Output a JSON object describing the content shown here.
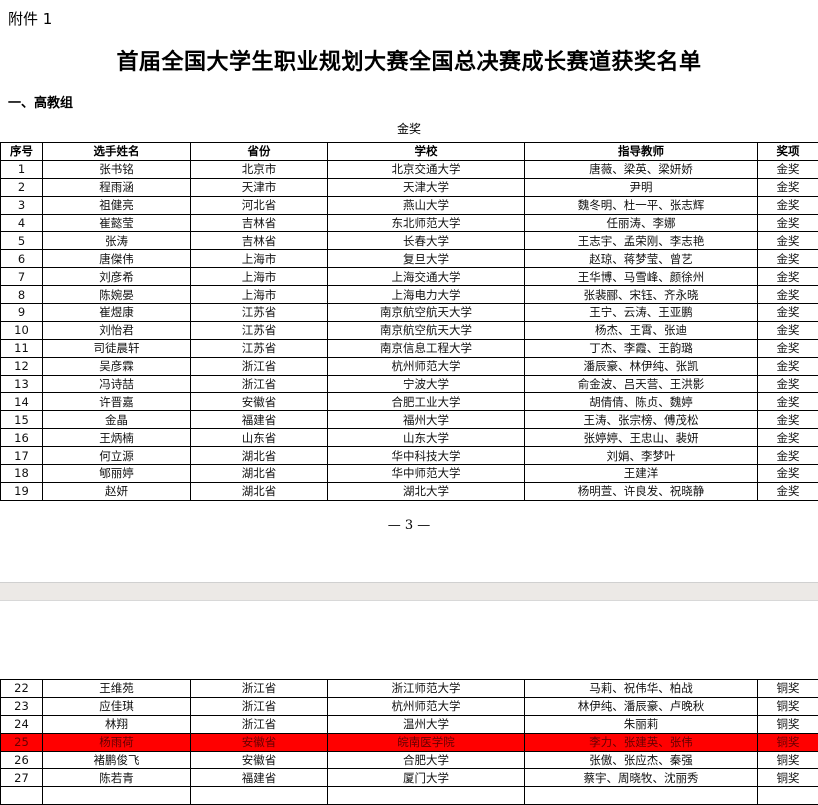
{
  "document": {
    "attachment_label": "附件 1",
    "title": "首届全国大学生职业规划大赛全国总决赛成长赛道获奖名单",
    "group_heading": "一、高教组",
    "award_heading": "金奖",
    "page_number": "— 3 —"
  },
  "table": {
    "headers": [
      "序号",
      "选手姓名",
      "省份",
      "学校",
      "指导教师",
      "奖项"
    ],
    "page1_rows": [
      [
        "1",
        "张书铭",
        "北京市",
        "北京交通大学",
        "唐薇、梁英、梁妍娇",
        "金奖"
      ],
      [
        "2",
        "程雨涵",
        "天津市",
        "天津大学",
        "尹明",
        "金奖"
      ],
      [
        "3",
        "祖健亮",
        "河北省",
        "燕山大学",
        "魏冬明、杜一平、张志辉",
        "金奖"
      ],
      [
        "4",
        "崔懿莹",
        "吉林省",
        "东北师范大学",
        "任丽涛、李娜",
        "金奖"
      ],
      [
        "5",
        "张涛",
        "吉林省",
        "长春大学",
        "王志宇、孟荣刚、李志艳",
        "金奖"
      ],
      [
        "6",
        "唐傑伟",
        "上海市",
        "复旦大学",
        "赵琼、蒋梦莹、曾艺",
        "金奖"
      ],
      [
        "7",
        "刘彦希",
        "上海市",
        "上海交通大学",
        "王华博、马雪峰、颜徐州",
        "金奖"
      ],
      [
        "8",
        "陈婉晏",
        "上海市",
        "上海电力大学",
        "张裴郦、宋钰、齐永晓",
        "金奖"
      ],
      [
        "9",
        "崔煜康",
        "江苏省",
        "南京航空航天大学",
        "王宁、云涛、王亚鹏",
        "金奖"
      ],
      [
        "10",
        "刘怡君",
        "江苏省",
        "南京航空航天大学",
        "杨杰、王霄、张迪",
        "金奖"
      ],
      [
        "11",
        "司徒晨轩",
        "江苏省",
        "南京信息工程大学",
        "丁杰、李霞、王韵璐",
        "金奖"
      ],
      [
        "12",
        "吴彦霖",
        "浙江省",
        "杭州师范大学",
        "潘辰豪、林伊纯、张凯",
        "金奖"
      ],
      [
        "13",
        "冯诗喆",
        "浙江省",
        "宁波大学",
        "俞金波、吕天营、王洪影",
        "金奖"
      ],
      [
        "14",
        "许晋嘉",
        "安徽省",
        "合肥工业大学",
        "胡倩倩、陈贞、魏婷",
        "金奖"
      ],
      [
        "15",
        "金晶",
        "福建省",
        "福州大学",
        "王涛、张宗榜、傅茂松",
        "金奖"
      ],
      [
        "16",
        "王炳楠",
        "山东省",
        "山东大学",
        "张婷婷、王忠山、裴妍",
        "金奖"
      ],
      [
        "17",
        "何立源",
        "湖北省",
        "华中科技大学",
        "刘娟、李梦叶",
        "金奖"
      ],
      [
        "18",
        "郇丽婷",
        "湖北省",
        "华中师范大学",
        "王建洋",
        "金奖"
      ],
      [
        "19",
        "赵妍",
        "湖北省",
        "湖北大学",
        "杨明萱、许良发、祝晓静",
        "金奖"
      ]
    ],
    "page2_rows": [
      [
        "22",
        "王维苑",
        "浙江省",
        "浙江师范大学",
        "马莉、祝伟华、柏战",
        "铜奖"
      ],
      [
        "23",
        "应佳琪",
        "浙江省",
        "杭州师范大学",
        "林伊纯、潘辰豪、卢晚秋",
        "铜奖"
      ],
      [
        "24",
        "林翔",
        "浙江省",
        "温州大学",
        "朱丽莉",
        "铜奖"
      ],
      [
        "25",
        "杨雨荷",
        "安徽省",
        "皖南医学院",
        "李力、张建英、张伟",
        "铜奖"
      ],
      [
        "26",
        "褚鹏俊飞",
        "安徽省",
        "合肥大学",
        "张傲、张应杰、秦强",
        "铜奖"
      ],
      [
        "27",
        "陈若青",
        "福建省",
        "厦门大学",
        "蔡宇、周晓牧、沈丽秀",
        "铜奖"
      ]
    ],
    "highlighted_row_number": "25",
    "highlight_color": "#ff0000"
  }
}
